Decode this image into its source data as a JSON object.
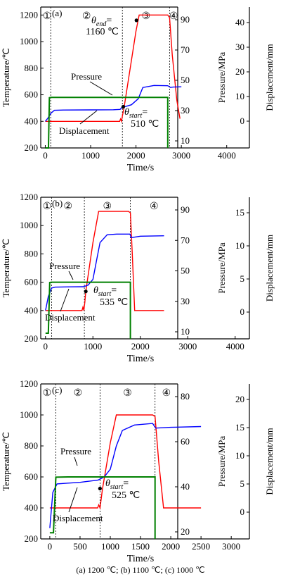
{
  "caption": "(a)  1200 ℃; (b) 1100 ℃; (c) 1000 ℃",
  "chart_data": [
    {
      "type": "line",
      "panel_label": "(a)",
      "xlabel": "Time/s",
      "ylabel": "Temperature/℃",
      "ylabel_right_1": "Pressure/MPa",
      "ylabel_right_2": "Displacement/mm",
      "xlim": [
        -100,
        4500
      ],
      "xticks": [
        0,
        1000,
        2000,
        3000,
        4000
      ],
      "ylim": [
        200,
        1260
      ],
      "yticks": [
        200,
        400,
        600,
        800,
        1000,
        1200
      ],
      "pressure_ticks": [
        10,
        30,
        50,
        70,
        90
      ],
      "displacement_ticks": [
        0,
        10,
        20,
        30,
        40
      ],
      "stage_labels": [
        "①",
        "②",
        "③",
        "④"
      ],
      "stage_boundaries": [
        120,
        1700,
        2740
      ],
      "series": [
        {
          "key": "temperature",
          "color": "#ff0000",
          "x": [
            0,
            1640,
            1660,
            1680,
            1700,
            1740,
            2000,
            2070,
            2150,
            2700,
            2740,
            2800,
            2900,
            2970
          ],
          "y": [
            400,
            400,
            418,
            400,
            440,
            510,
            1080,
            1200,
            1200,
            1200,
            1180,
            900,
            560,
            420
          ]
        },
        {
          "key": "displacement",
          "color": "#0000ff",
          "x": [
            0,
            60,
            120,
            200,
            400,
            1000,
            1500,
            1650,
            1700,
            1750,
            1900,
            2050,
            2150,
            2400,
            2700,
            2760,
            2820,
            3000
          ],
          "y": [
            400,
            425,
            460,
            483,
            485,
            486,
            487,
            490,
            510,
            510,
            525,
            570,
            655,
            670,
            668,
            655,
            658,
            660
          ]
        },
        {
          "key": "pressure",
          "color": "#008000",
          "x": [
            0,
            70,
            90,
            130,
            500,
            1000,
            1500,
            2000,
            2500,
            2700,
            2700
          ],
          "y": [
            200,
            200,
            578,
            580,
            580,
            580,
            580,
            580,
            580,
            580,
            200
          ]
        }
      ],
      "annotations": {
        "pressure_label": "Pressure",
        "displacement_label": "Displacement",
        "end_prefix": "θ",
        "end_sub": "end",
        "end_eq": "=",
        "end_value": "1160 ℃",
        "end_point": [
          2010,
          1160
        ],
        "start_prefix": "θ",
        "start_sub": "start",
        "start_eq": "=",
        "start_value": "510 ℃",
        "start_point": [
          1720,
          510
        ]
      }
    },
    {
      "type": "line",
      "panel_label": "(b)",
      "xlabel": "Time/s",
      "ylabel": "Temperature/℃",
      "ylabel_right_1": "Pressure/MPa",
      "ylabel_right_2": "Displacement/mm",
      "xlim": [
        -100,
        4300
      ],
      "xticks": [
        0,
        1000,
        2000,
        3000,
        4000
      ],
      "ylim": [
        200,
        1200
      ],
      "yticks": [
        200,
        400,
        600,
        800,
        1000,
        1200
      ],
      "pressure_ticks": [
        10,
        30,
        50,
        70,
        90
      ],
      "displacement_ticks": [
        0,
        5,
        10,
        15
      ],
      "stage_labels": [
        "①",
        "②",
        "③",
        "④"
      ],
      "stage_boundaries": [
        130,
        820,
        1790
      ],
      "series": [
        {
          "key": "temperature",
          "color": "#ff0000",
          "x": [
            0,
            770,
            790,
            810,
            830,
            850,
            1000,
            1120,
            1200,
            1750,
            1790,
            1830,
            1880,
            2000,
            2500
          ],
          "y": [
            400,
            400,
            425,
            400,
            460,
            535,
            880,
            1100,
            1100,
            1100,
            1090,
            800,
            400,
            400,
            400
          ]
        },
        {
          "key": "displacement",
          "color": "#0000ff",
          "x": [
            0,
            60,
            130,
            200,
            500,
            800,
            900,
            1000,
            1080,
            1150,
            1300,
            1500,
            1780,
            1810,
            2000,
            2500
          ],
          "y": [
            400,
            500,
            558,
            565,
            567,
            568,
            580,
            620,
            760,
            880,
            935,
            940,
            940,
            915,
            925,
            928
          ]
        },
        {
          "key": "pressure",
          "color": "#008000",
          "x": [
            0,
            60,
            90,
            130,
            500,
            1000,
            1500,
            1790,
            1790
          ],
          "y": [
            240,
            240,
            598,
            600,
            600,
            600,
            600,
            600,
            200
          ]
        }
      ],
      "annotations": {
        "pressure_label": "Pressure",
        "displacement_label": "Displacement",
        "start_prefix": "θ",
        "start_sub": "start",
        "start_eq": "=",
        "start_value": "535 ℃",
        "start_point": [
          850,
          535
        ]
      }
    },
    {
      "type": "line",
      "panel_label": "(c)",
      "xlabel": "Time/s",
      "ylabel": "Temperature/℃",
      "ylabel_right_1": "Pressure/MPa",
      "ylabel_right_2": "Displacement/mm",
      "xlim": [
        -150,
        3300
      ],
      "xticks": [
        0,
        500,
        1000,
        1500,
        2000,
        2500,
        3000
      ],
      "ylim": [
        200,
        1200
      ],
      "yticks": [
        200,
        400,
        600,
        800,
        1000,
        1200
      ],
      "pressure_ticks": [
        20,
        40,
        60,
        80
      ],
      "displacement_ticks": [
        0,
        5,
        10,
        15,
        20
      ],
      "stage_labels": [
        "①",
        "②",
        "③",
        "④"
      ],
      "stage_boundaries": [
        100,
        830,
        1740
      ],
      "series": [
        {
          "key": "temperature",
          "color": "#ff0000",
          "x": [
            0,
            790,
            810,
            830,
            870,
            1000,
            1100,
            1200,
            1700,
            1740,
            1800,
            1880,
            2000,
            2500
          ],
          "y": [
            400,
            400,
            420,
            400,
            520,
            820,
            1000,
            1000,
            1000,
            990,
            700,
            400,
            400,
            400
          ]
        },
        {
          "key": "displacement",
          "color": "#0000ff",
          "x": [
            0,
            50,
            120,
            300,
            500,
            600,
            800,
            900,
            1000,
            1100,
            1200,
            1400,
            1700,
            1750,
            2000,
            2500
          ],
          "y": [
            270,
            500,
            555,
            560,
            565,
            570,
            580,
            600,
            650,
            800,
            900,
            935,
            945,
            915,
            920,
            925
          ]
        },
        {
          "key": "pressure",
          "color": "#008000",
          "x": [
            0,
            60,
            100,
            300,
            800,
            1200,
            1740,
            1740
          ],
          "y": [
            240,
            240,
            598,
            600,
            600,
            600,
            600,
            200
          ]
        }
      ],
      "annotations": {
        "pressure_label": "Pressure",
        "displacement_label": "Displacement",
        "start_prefix": "θ",
        "start_sub": "start",
        "start_eq": "=",
        "start_value": "525 ℃",
        "start_point": [
          830,
          525
        ]
      }
    }
  ]
}
